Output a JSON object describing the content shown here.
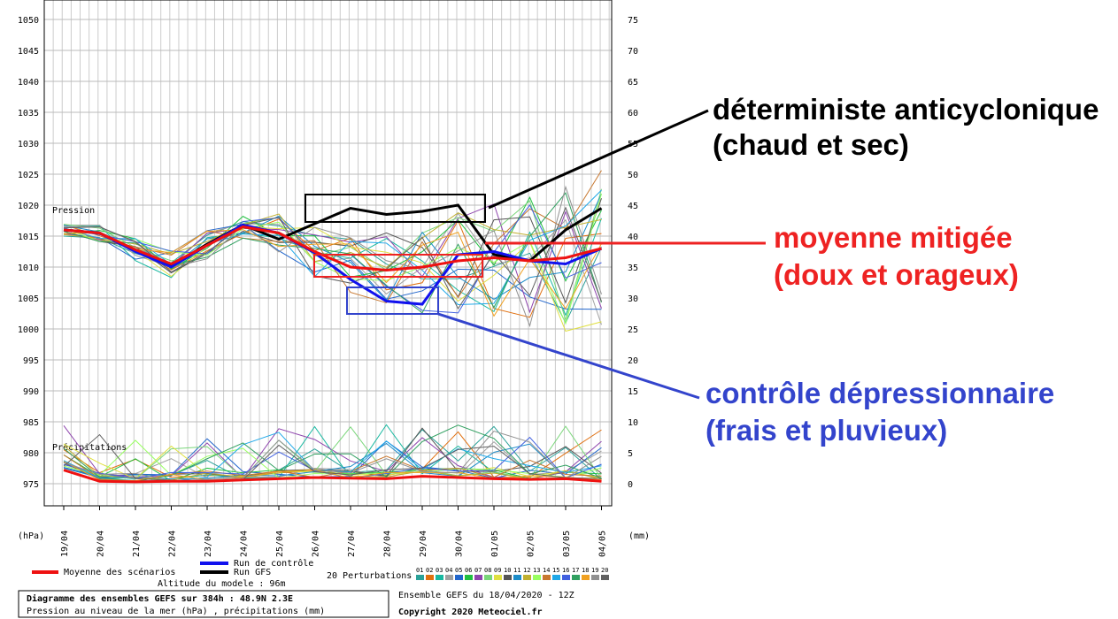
{
  "chart_data": {
    "type": "line",
    "title": "Diagramme des ensembles GEFS sur 384h : 48.9N 2.3E",
    "subtitle": "Pression au niveau de la mer (hPa) , précipitations (mm)",
    "x": [
      "19/04",
      "20/04",
      "21/04",
      "22/04",
      "23/04",
      "24/04",
      "25/04",
      "26/04",
      "27/04",
      "28/04",
      "29/04",
      "30/04",
      "01/05",
      "02/05",
      "03/05",
      "04/05"
    ],
    "xlabel_left": "(hPa)",
    "xlabel_right": "(mm)",
    "ylim_left": [
      975,
      1050
    ],
    "yticks_left": [
      1050,
      1045,
      1040,
      1035,
      1030,
      1025,
      1020,
      1015,
      1010,
      1005,
      1000,
      995,
      990,
      985,
      980,
      975
    ],
    "ylim_right": [
      0,
      75
    ],
    "yticks_right": [
      75,
      70,
      65,
      60,
      55,
      50,
      45,
      40,
      35,
      30,
      25,
      20,
      15,
      10,
      5,
      0
    ],
    "grid": true,
    "panel_labels": {
      "pressure": "Pression",
      "precip": "Précipitations"
    },
    "series": [
      {
        "name": "Moyenne des scénarios",
        "color": "#ee1111",
        "values": [
          1016,
          1015.5,
          1012.8,
          1010.5,
          1013.5,
          1016.5,
          1015.5,
          1012.5,
          1010,
          1009.5,
          1010,
          1011,
          1011.5,
          1011,
          1011.5,
          1013
        ]
      },
      {
        "name": "Run de contrôle",
        "color": "#1111ee",
        "values": [
          1016,
          1015.5,
          1012.5,
          1010,
          1013.5,
          1016.8,
          1015.5,
          1012.3,
          1008,
          1004.5,
          1004,
          1012,
          1012.5,
          1011,
          1010.5,
          1013
        ]
      },
      {
        "name": "Run GFS",
        "color": "#000000",
        "values": [
          1016,
          1015.5,
          1012.6,
          1010.2,
          1013.7,
          1016.8,
          1014.5,
          1017,
          1019.5,
          1018.5,
          1019,
          1020,
          1012,
          1011,
          1016,
          1019.5
        ]
      }
    ],
    "precip_mean": [
      2.2,
      0.4,
      0.3,
      0.4,
      0.4,
      0.6,
      0.8,
      1.0,
      0.9,
      0.8,
      1.2,
      1.0,
      0.8,
      0.7,
      0.8,
      0.4
    ],
    "perturbations": {
      "label": "20 Perturbations",
      "numbers": [
        "01",
        "02",
        "03",
        "04",
        "05",
        "06",
        "07",
        "08",
        "09",
        "10",
        "11",
        "12",
        "13",
        "14",
        "15",
        "16",
        "17",
        "18",
        "19",
        "20"
      ],
      "colors": [
        "#2aa198",
        "#e07010",
        "#18b8a0",
        "#a0a0a0",
        "#2266cc",
        "#20c040",
        "#8e44ad",
        "#7ad67a",
        "#e0e040",
        "#555555",
        "#1c8cc8",
        "#c0b030",
        "#98ff60",
        "#c87830",
        "#20a8e8",
        "#4060e0",
        "#30a060",
        "#f0a020",
        "#909090",
        "#606060"
      ]
    },
    "model_altitude": "Altitude du modele : 96m",
    "ensemble_label": "Ensemble GEFS du 18/04/2020 - 12Z",
    "copyright": "Copyright 2020 Meteociel.fr",
    "annotations": [
      {
        "lines": [
          "déterministe anticyclonique",
          "(chaud et sec)"
        ],
        "color": "#000000"
      },
      {
        "lines": [
          "moyenne mitigée",
          "(doux et orageux)"
        ],
        "color": "#ee2222"
      },
      {
        "lines": [
          "contrôle dépressionnaire",
          "(frais et pluvieux)"
        ],
        "color": "#3344cc"
      }
    ]
  }
}
